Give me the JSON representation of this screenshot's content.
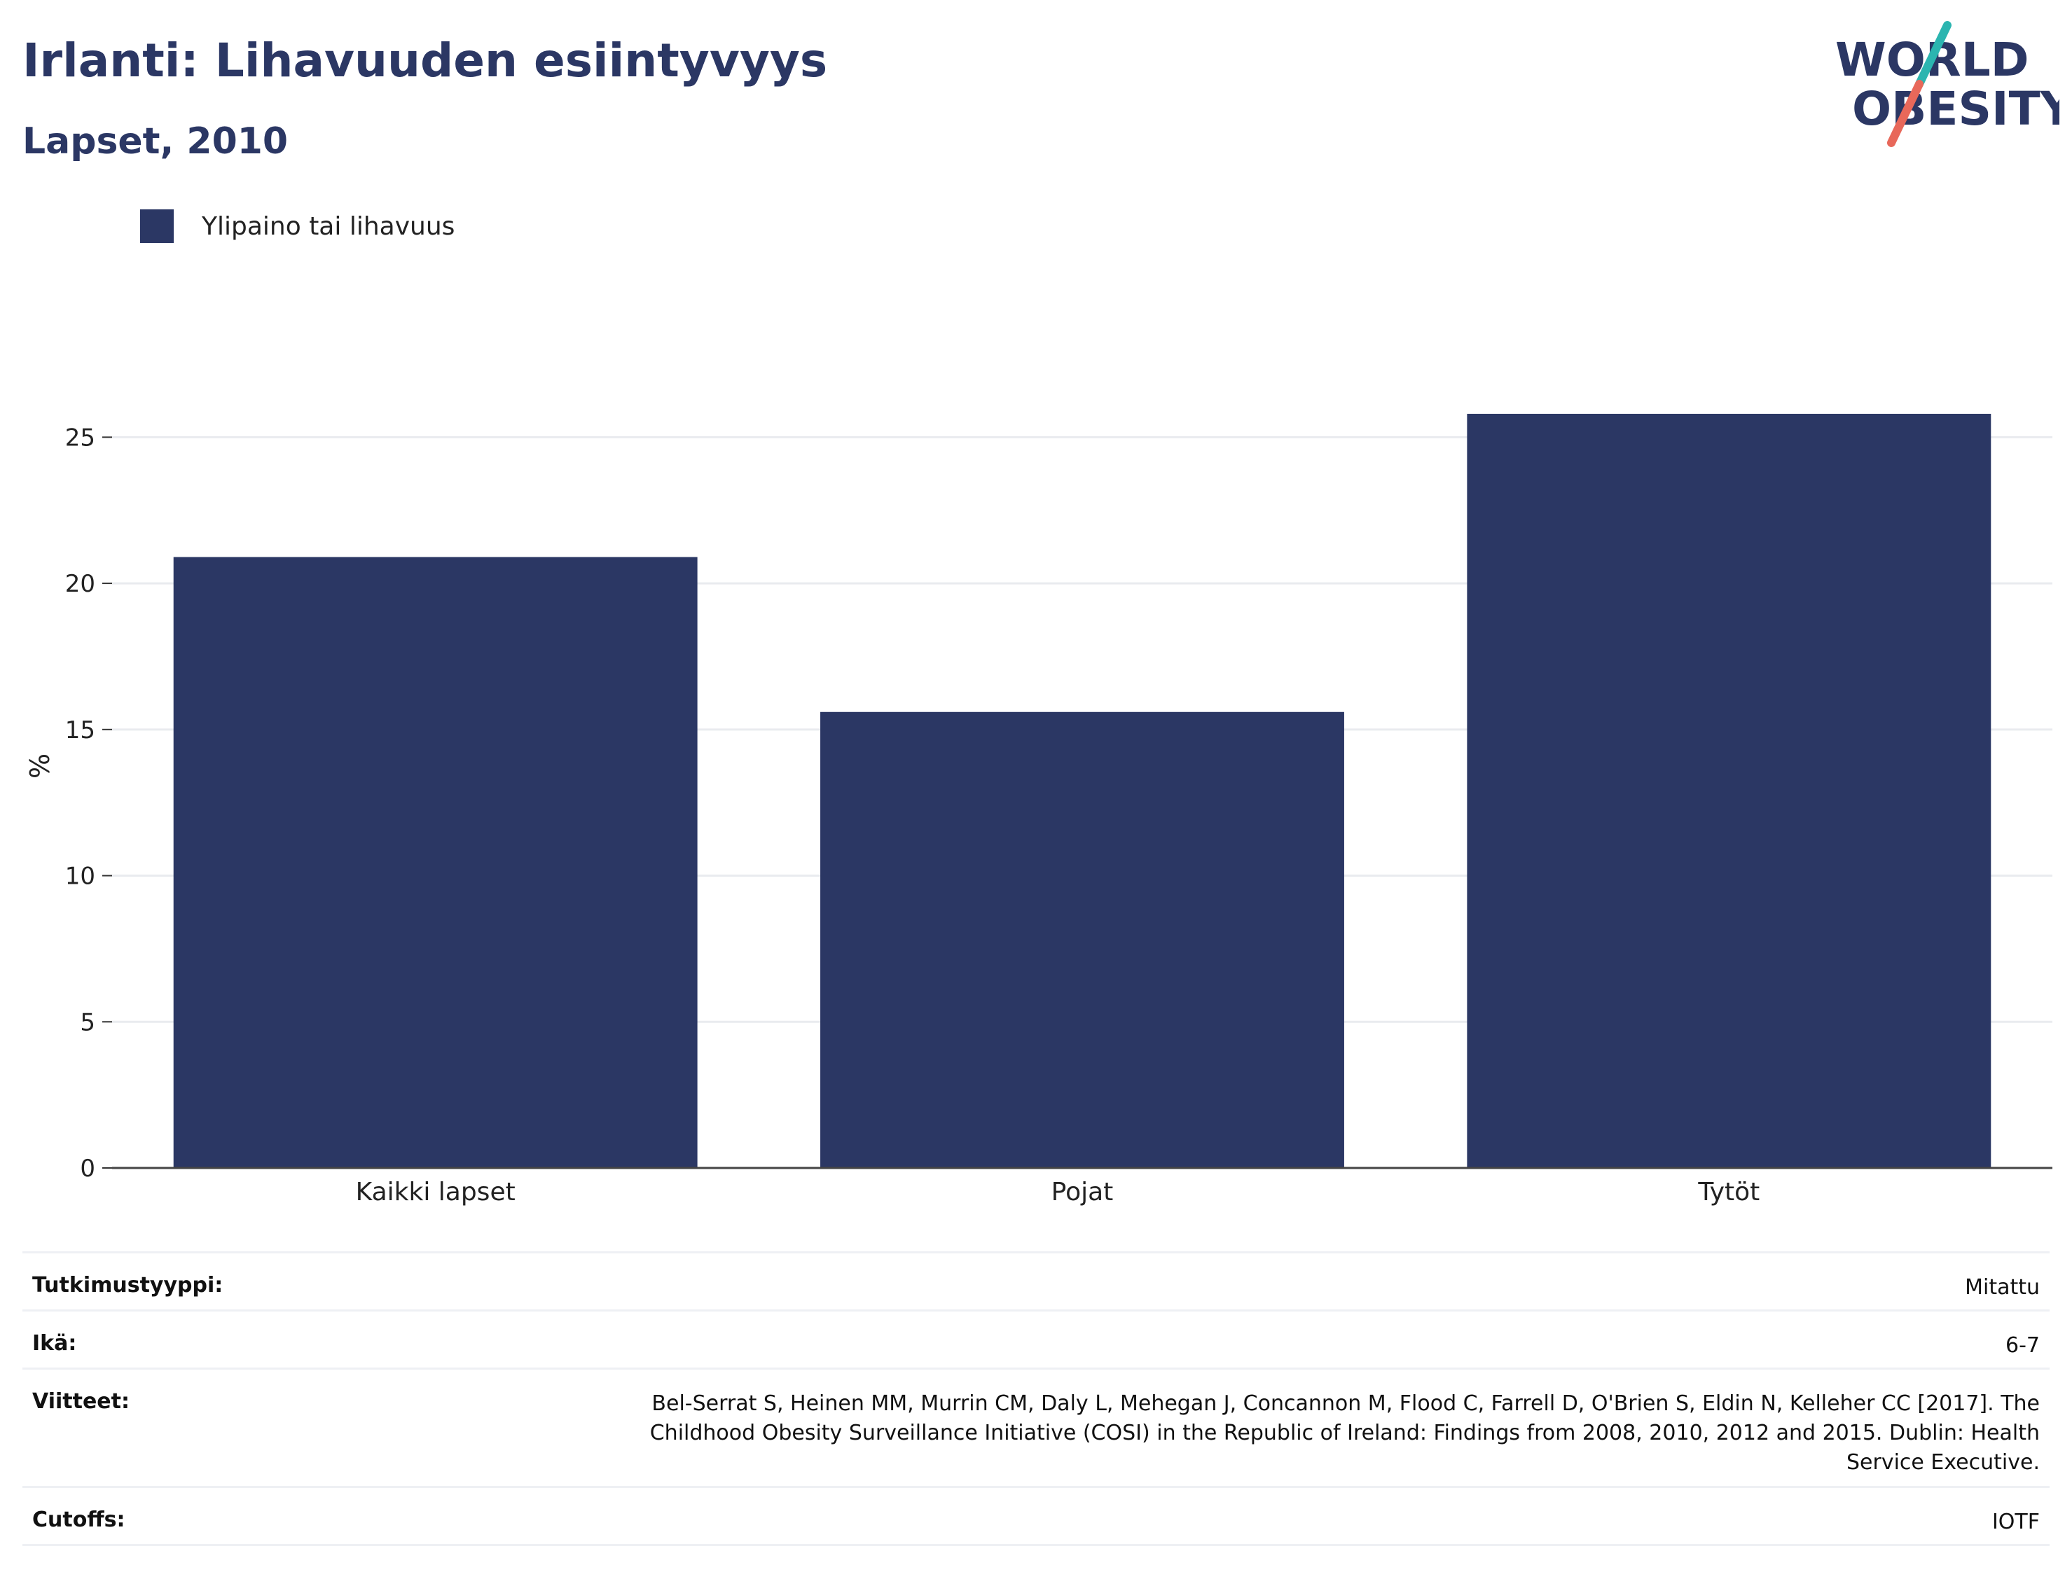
{
  "header": {
    "title": "Irlanti: Lihavuuden esiintyvyys",
    "subtitle": "Lapset, 2010"
  },
  "logo": {
    "line1": "WORLD",
    "line2": "OBESITY"
  },
  "legend": {
    "label": "Ylipaino tai lihavuus",
    "color": "#2b3764"
  },
  "chart_data": {
    "type": "bar",
    "categories": [
      "Kaikki lapset",
      "Pojat",
      "Tytöt"
    ],
    "series": [
      {
        "name": "Ylipaino tai lihavuus",
        "values": [
          20.9,
          15.6,
          25.8
        ],
        "color": "#2b3764"
      }
    ],
    "xlabel": "",
    "ylabel": "%",
    "ylim": [
      0,
      27.5
    ],
    "yticks": [
      0,
      5,
      10,
      15,
      20,
      25
    ],
    "grid": true,
    "legend_position": "top-left"
  },
  "meta": {
    "rows": [
      {
        "key": "Tutkimustyyppi:",
        "value": "Mitattu"
      },
      {
        "key": "Ikä:",
        "value": "6-7"
      },
      {
        "key": "Viitteet:",
        "value": "Bel-Serrat S, Heinen MM, Murrin CM, Daly L, Mehegan J, Concannon M, Flood C, Farrell D, O'Brien S, Eldin N, Kelleher CC [2017]. The Childhood Obesity Surveillance Initiative (COSI) in the Republic of Ireland: Findings from 2008, 2010, 2012 and 2015. Dublin: Health Service Executive."
      },
      {
        "key": "Cutoffs:",
        "value": "IOTF"
      }
    ]
  },
  "colors": {
    "brand_navy": "#2b3764",
    "logo_teal": "#2bb5b0",
    "logo_coral": "#e8685a",
    "grid": "#e9ebef"
  }
}
